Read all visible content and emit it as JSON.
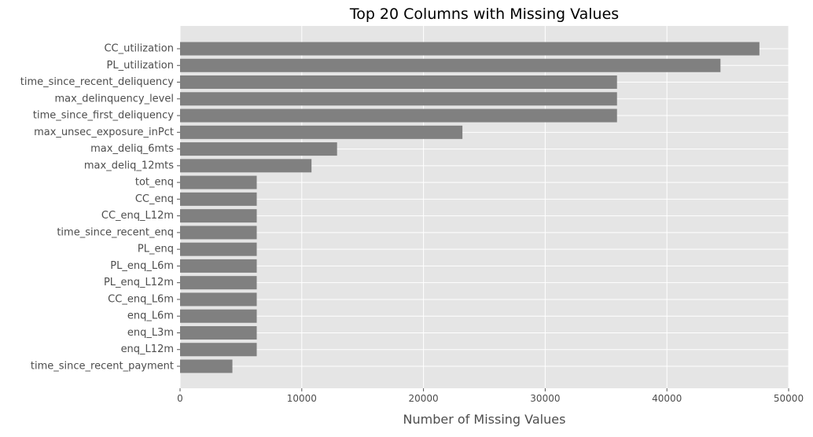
{
  "chart_data": {
    "type": "bar",
    "orientation": "horizontal",
    "title": "Top 20 Columns with Missing Values",
    "xlabel": "Number of Missing Values",
    "ylabel": "",
    "xlim": [
      0,
      50000
    ],
    "xticks": [
      0,
      10000,
      20000,
      30000,
      40000,
      50000
    ],
    "grid": true,
    "bar_color": "#808080",
    "background_color": "#e5e5e5",
    "grid_color": "#ffffff",
    "categories": [
      "CC_utilization",
      "PL_utilization",
      "time_since_recent_deliquency",
      "max_delinquency_level",
      "time_since_first_deliquency",
      "max_unsec_exposure_inPct",
      "max_deliq_6mts",
      "max_deliq_12mts",
      "tot_enq",
      "CC_enq",
      "CC_enq_L12m",
      "time_since_recent_enq",
      "PL_enq",
      "PL_enq_L6m",
      "PL_enq_L12m",
      "CC_enq_L6m",
      "enq_L6m",
      "enq_L3m",
      "enq_L12m",
      "time_since_recent_payment"
    ],
    "values": [
      47600,
      44400,
      35900,
      35900,
      35900,
      23200,
      12900,
      10800,
      6300,
      6300,
      6300,
      6300,
      6300,
      6300,
      6300,
      6300,
      6300,
      6300,
      6300,
      4300
    ]
  }
}
